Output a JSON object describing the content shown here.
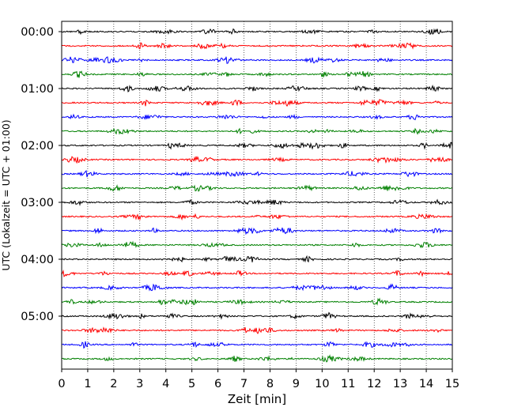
{
  "chart_data": {
    "type": "line",
    "title": "",
    "xlabel": "Zeit  [min]",
    "ylabel": "UTC (Lokalzeit = UTC + 01:00)",
    "xlim": [
      0,
      15
    ],
    "x_ticks": [
      "0",
      "1",
      "2",
      "3",
      "4",
      "5",
      "6",
      "7",
      "8",
      "9",
      "10",
      "11",
      "12",
      "13",
      "14",
      "15"
    ],
    "y_ticks": [
      "00:00",
      "01:00",
      "02:00",
      "03:00",
      "04:00",
      "05:00"
    ],
    "grid": "vertical dotted lines at each minute",
    "trace_colors": [
      "#000000",
      "#ff0000",
      "#0000ff",
      "#008000"
    ],
    "trace_count": 24,
    "trace_interval_min": 15,
    "trace_description": "helicorder seismogram traces, one per 15 minutes, colors cycling black, red, blue, green"
  }
}
